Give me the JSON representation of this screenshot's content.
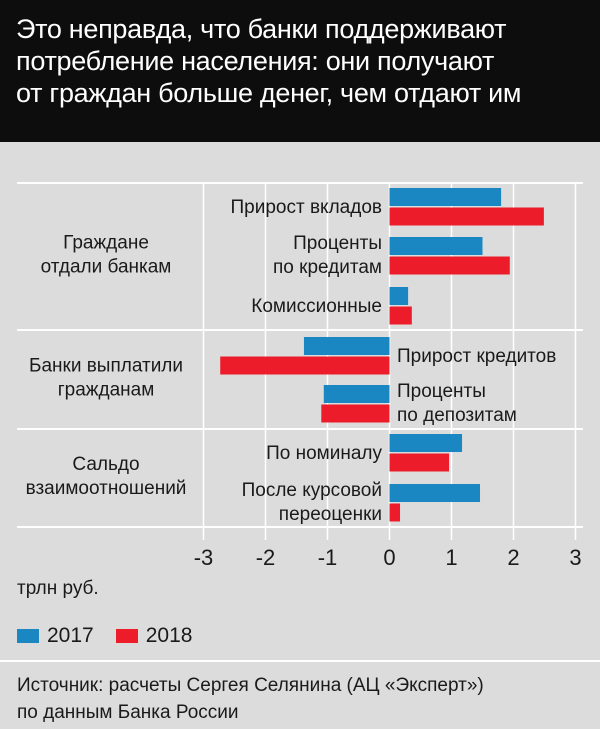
{
  "title": [
    "Это неправда, что банки поддерживают",
    "потребление населения: они получают",
    "от граждан больше денег, чем отдают им"
  ],
  "chart_data": {
    "type": "bar",
    "orientation": "horizontal",
    "xlabel": "трлн руб.",
    "xlim": [
      -3,
      3
    ],
    "xticks": [
      "-3",
      "-2",
      "-1",
      "0",
      "1",
      "2",
      "3"
    ],
    "groups": [
      {
        "label": [
          "Граждане",
          "отдали банкам"
        ],
        "categories": [
          [
            "Прирост вкладов"
          ],
          [
            "Проценты",
            "по кредитам"
          ],
          [
            "Комиссионные"
          ]
        ]
      },
      {
        "label": [
          "Банки выплатили",
          "гражданам"
        ],
        "categories": [
          [
            "Прирост кредитов"
          ],
          [
            "Проценты",
            "по депозитам"
          ]
        ]
      },
      {
        "label": [
          "Сальдо",
          "взаимоотношений"
        ],
        "categories": [
          [
            "По номиналу"
          ],
          [
            "После курсовой",
            "переоценки"
          ]
        ]
      }
    ],
    "series": [
      {
        "name": "2017",
        "color": "#1a87c2",
        "values": [
          1.8,
          1.5,
          0.3,
          -1.38,
          -1.06,
          1.17,
          1.46
        ]
      },
      {
        "name": "2018",
        "color": "#ec1c2a",
        "values": [
          2.49,
          1.94,
          0.36,
          -2.73,
          -1.1,
          0.96,
          0.17
        ]
      }
    ],
    "grid": true,
    "legend": "bottom-left"
  },
  "source": [
    "Источник: расчеты Сергея Селянина (АЦ «Эксперт»)",
    "по данным Банка России"
  ]
}
